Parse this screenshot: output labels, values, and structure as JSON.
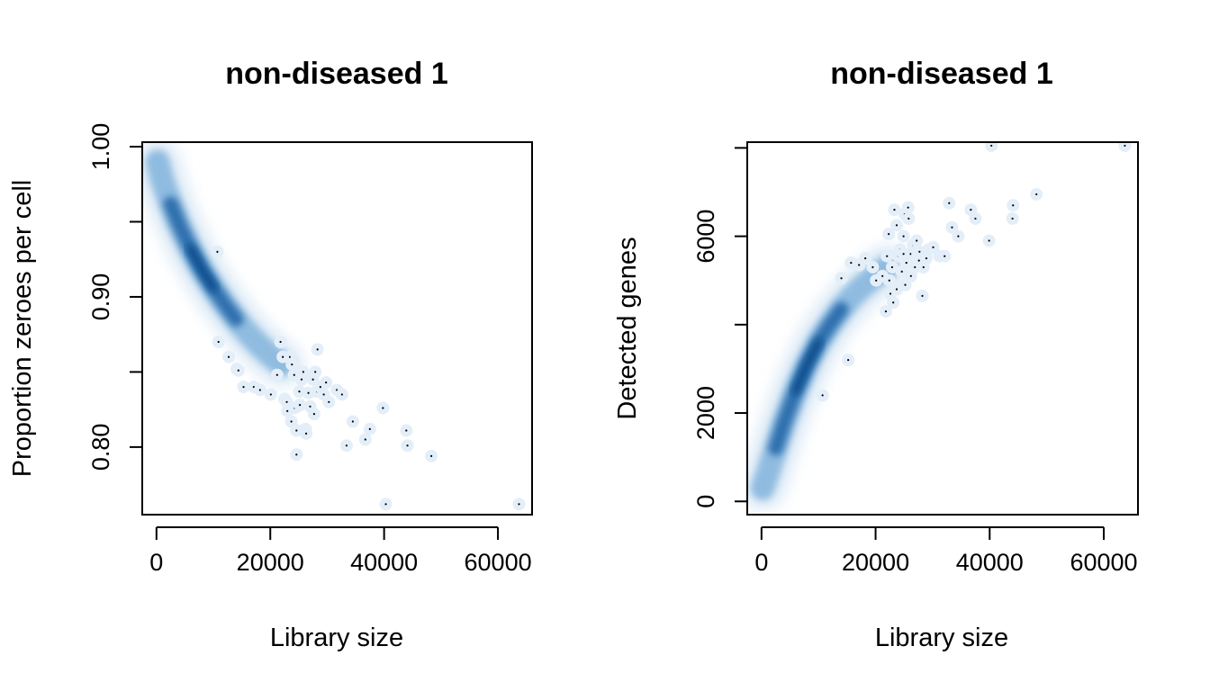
{
  "chart_data": [
    {
      "type": "scatter",
      "style": "smoothScatter density",
      "title": "non-diseased 1",
      "xlabel": "Library size",
      "ylabel": "Proportion zeroes per cell",
      "xlim": [
        -2500,
        66000
      ],
      "ylim": [
        0.755,
        1.003
      ],
      "x_ticks": [
        0,
        20000,
        40000,
        60000
      ],
      "y_ticks": [
        0.8,
        0.85,
        0.9,
        0.95,
        1.0
      ],
      "x_tick_labels": [
        "0",
        "20000",
        "40000",
        "60000"
      ],
      "y_tick_labels": [
        "0.80",
        "",
        "0.90",
        "",
        "1.00"
      ],
      "density_trend": {
        "x": [
          200,
          1000,
          2500,
          4000,
          6000,
          8000,
          10000,
          12000,
          14000,
          16000,
          18000,
          20000,
          22000
        ],
        "y": [
          0.99,
          0.978,
          0.962,
          0.948,
          0.932,
          0.918,
          0.906,
          0.895,
          0.885,
          0.876,
          0.868,
          0.861,
          0.855
        ]
      },
      "outliers": {
        "x": [
          10700,
          10900,
          12700,
          14100,
          14400,
          15300,
          17100,
          18200,
          20100,
          21200,
          21800,
          22500,
          22900,
          23000,
          23400,
          23700,
          24200,
          24300,
          24600,
          24600,
          25100,
          25200,
          25800,
          26200,
          26300,
          26700,
          27000,
          27500,
          27700,
          28200,
          28300,
          28800,
          29400,
          29800,
          30300,
          31700,
          32600,
          33400,
          34500,
          36700,
          37500,
          39800,
          40300,
          43900,
          44100,
          48300,
          63700,
          22200,
          23800,
          25500,
          27900
        ],
        "y": [
          0.93,
          0.87,
          0.86,
          0.852,
          0.851,
          0.84,
          0.84,
          0.838,
          0.835,
          0.848,
          0.87,
          0.832,
          0.83,
          0.824,
          0.86,
          0.817,
          0.848,
          0.826,
          0.811,
          0.795,
          0.837,
          0.828,
          0.85,
          0.812,
          0.809,
          0.836,
          0.827,
          0.845,
          0.822,
          0.837,
          0.865,
          0.84,
          0.835,
          0.843,
          0.83,
          0.838,
          0.835,
          0.801,
          0.817,
          0.805,
          0.812,
          0.826,
          0.762,
          0.811,
          0.801,
          0.794,
          0.762,
          0.86,
          0.855,
          0.845,
          0.85
        ]
      }
    },
    {
      "type": "scatter",
      "style": "smoothScatter density",
      "title": "non-diseased 1",
      "xlabel": "Library size",
      "ylabel": "Detected genes",
      "xlim": [
        -2500,
        66000
      ],
      "ylim": [
        -300,
        8130
      ],
      "x_ticks": [
        0,
        20000,
        40000,
        60000
      ],
      "y_ticks": [
        0,
        2000,
        4000,
        6000,
        8000
      ],
      "x_tick_labels": [
        "0",
        "20000",
        "40000",
        "60000"
      ],
      "y_tick_labels": [
        "0",
        "2000",
        "",
        "6000",
        ""
      ],
      "density_trend": {
        "x": [
          200,
          1000,
          2500,
          4000,
          6000,
          8000,
          10000,
          12000,
          14000,
          16000,
          18000,
          20000,
          22000
        ],
        "y": [
          300,
          600,
          1200,
          1800,
          2500,
          3100,
          3600,
          4000,
          4350,
          4650,
          4900,
          5100,
          5300
        ]
      },
      "outliers": {
        "x": [
          10700,
          14000,
          15200,
          15700,
          17100,
          18200,
          19500,
          20100,
          21200,
          21800,
          22000,
          22300,
          22600,
          22900,
          23100,
          23300,
          23700,
          24000,
          24300,
          24600,
          24900,
          25100,
          25200,
          25400,
          25700,
          26100,
          26200,
          26600,
          26900,
          27200,
          27600,
          27700,
          28200,
          28400,
          28900,
          29300,
          30100,
          31200,
          32100,
          32900,
          33400,
          34500,
          36700,
          37500,
          39900,
          40300,
          44100,
          44000,
          48200,
          63700,
          24900,
          23700,
          25800,
          22400
        ],
        "y": [
          2400,
          5050,
          3200,
          5400,
          5350,
          5500,
          5300,
          5000,
          5100,
          4300,
          5550,
          6050,
          4700,
          5300,
          4500,
          6600,
          4800,
          5550,
          5700,
          5200,
          6000,
          6500,
          4900,
          5400,
          6650,
          5600,
          5100,
          5800,
          5300,
          5900,
          5450,
          5650,
          4650,
          5300,
          5500,
          5700,
          5750,
          5550,
          5550,
          6750,
          6200,
          6000,
          6600,
          6400,
          5900,
          8050,
          6700,
          6400,
          6950,
          8050,
          5600,
          6250,
          6400,
          5000
        ]
      }
    }
  ]
}
